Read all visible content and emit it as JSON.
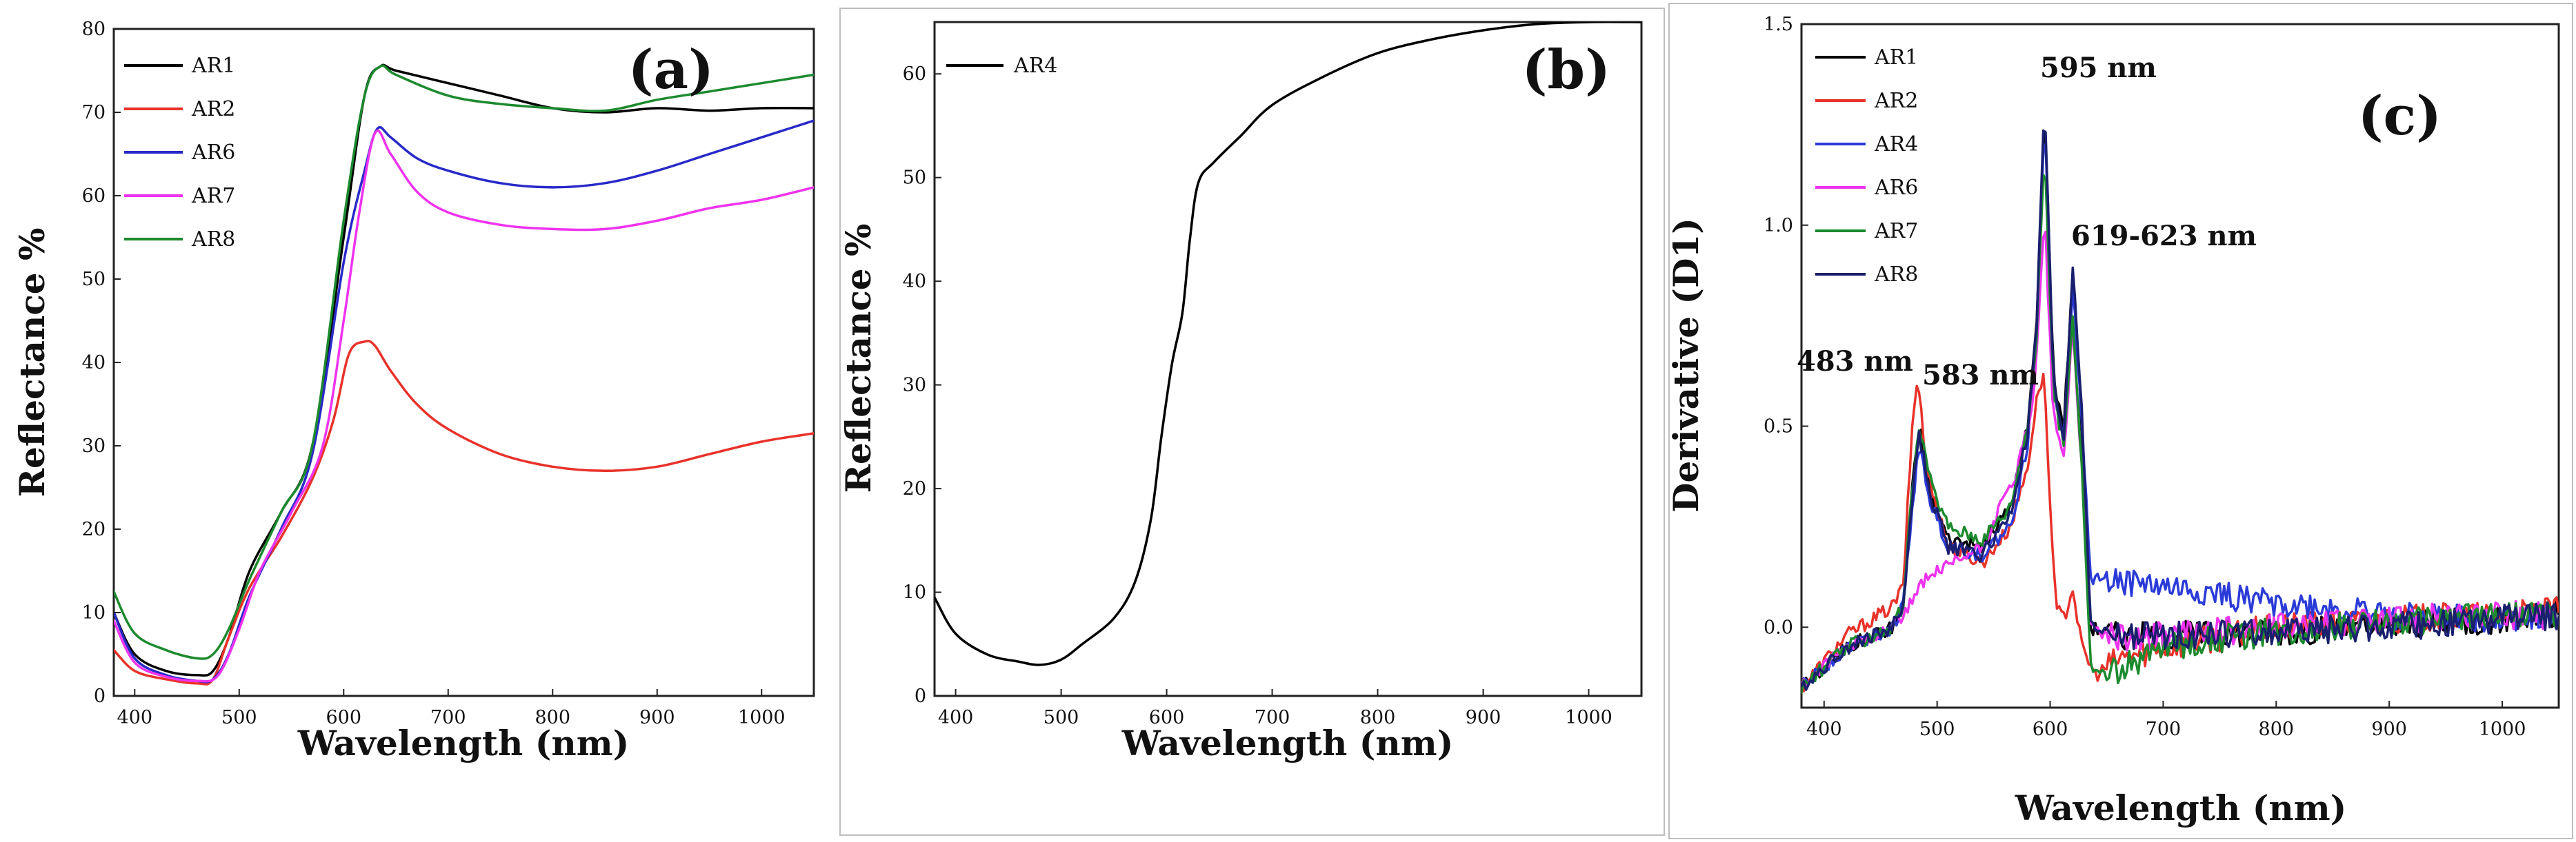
{
  "chart_data": [
    {
      "id": "a",
      "type": "line",
      "panel_label": "(a)",
      "xlabel": "Wavelength (nm)",
      "ylabel": "Reflectance %",
      "xlim": [
        380,
        1050
      ],
      "ylim": [
        0,
        80
      ],
      "xticks": [
        400,
        500,
        600,
        700,
        800,
        900,
        1000
      ],
      "yticks": [
        0,
        10,
        20,
        30,
        40,
        50,
        60,
        70,
        80
      ],
      "legend_position": "top-left",
      "series": [
        {
          "name": "AR1",
          "color": "#000000",
          "x": [
            380,
            400,
            430,
            460,
            475,
            490,
            510,
            540,
            570,
            600,
            620,
            635,
            650,
            700,
            750,
            800,
            850,
            900,
            950,
            1000,
            1050
          ],
          "y": [
            10,
            5,
            3,
            2.5,
            3,
            7,
            15,
            22,
            30,
            55,
            72,
            75.5,
            75,
            73.5,
            72,
            70.5,
            70,
            70.5,
            70.2,
            70.5,
            70.5
          ]
        },
        {
          "name": "AR2",
          "color": "#e8322a",
          "x": [
            380,
            400,
            430,
            460,
            475,
            490,
            510,
            540,
            570,
            590,
            605,
            620,
            630,
            645,
            670,
            700,
            750,
            800,
            850,
            900,
            950,
            1000,
            1050
          ],
          "y": [
            5.5,
            3,
            2,
            1.5,
            2,
            7,
            13,
            19,
            26,
            33,
            41,
            42.5,
            42,
            39,
            35,
            32,
            29,
            27.5,
            27,
            27.5,
            29,
            30.5,
            31.5
          ]
        },
        {
          "name": "AR6",
          "color": "#2929c8",
          "x": [
            380,
            400,
            430,
            460,
            475,
            490,
            510,
            540,
            570,
            600,
            620,
            632,
            645,
            670,
            700,
            750,
            800,
            850,
            900,
            950,
            1000,
            1050
          ],
          "y": [
            10,
            4.5,
            2.5,
            1.8,
            2,
            5,
            12,
            20,
            29,
            52,
            63,
            68,
            67,
            64.5,
            63,
            61.5,
            61,
            61.5,
            63,
            65,
            67,
            69
          ]
        },
        {
          "name": "AR7",
          "color": "#ee33ee",
          "x": [
            380,
            400,
            430,
            460,
            480,
            500,
            520,
            550,
            580,
            600,
            615,
            630,
            645,
            670,
            700,
            750,
            800,
            850,
            900,
            950,
            1000,
            1050
          ],
          "y": [
            9,
            4,
            2.3,
            1.8,
            2.5,
            8,
            15,
            22,
            30,
            45,
            58,
            67.5,
            65,
            60.5,
            58,
            56.5,
            56,
            56,
            57,
            58.5,
            59.5,
            61
          ]
        },
        {
          "name": "AR8",
          "color": "#1c8a2e",
          "x": [
            380,
            400,
            430,
            460,
            475,
            490,
            510,
            540,
            570,
            600,
            620,
            635,
            650,
            700,
            750,
            800,
            850,
            900,
            950,
            1000,
            1050
          ],
          "y": [
            12.5,
            7.5,
            5.5,
            4.5,
            5,
            8,
            14,
            22,
            30,
            57,
            72,
            75.5,
            74.5,
            72,
            71,
            70.5,
            70.2,
            71.5,
            72.5,
            73.5,
            74.5
          ]
        }
      ]
    },
    {
      "id": "b",
      "type": "line",
      "panel_label": "(b)",
      "xlabel": "Wavelength (nm)",
      "ylabel": "Reflectance %",
      "xlim": [
        380,
        1050
      ],
      "ylim": [
        0,
        65
      ],
      "xticks": [
        400,
        500,
        600,
        700,
        800,
        900,
        1000
      ],
      "yticks": [
        0,
        10,
        20,
        30,
        40,
        50,
        60
      ],
      "legend_position": "top-left",
      "series": [
        {
          "name": "AR4",
          "color": "#000000",
          "x": [
            380,
            400,
            430,
            460,
            480,
            500,
            520,
            550,
            570,
            585,
            595,
            605,
            615,
            622,
            630,
            645,
            670,
            700,
            750,
            800,
            850,
            900,
            950,
            1000,
            1050
          ],
          "y": [
            9.5,
            6,
            4,
            3.3,
            3,
            3.5,
            5,
            7.5,
            11,
            17,
            25,
            32,
            37,
            44,
            49.5,
            51.5,
            54,
            57,
            59.8,
            62,
            63.3,
            64.2,
            64.8,
            65,
            65
          ]
        }
      ]
    },
    {
      "id": "c",
      "type": "line",
      "panel_label": "(c)",
      "xlabel": "Wavelength (nm)",
      "ylabel": "Derivative (D1)",
      "xlim": [
        380,
        1050
      ],
      "ylim": [
        -0.2,
        1.5
      ],
      "xticks": [
        400,
        500,
        600,
        700,
        800,
        900,
        1000
      ],
      "yticks": [
        0.0,
        0.5,
        1.0,
        1.5
      ],
      "ytick_labels": [
        "0.0",
        "0.5",
        "1.0",
        "1.5"
      ],
      "legend_position": "top-left",
      "annotations": [
        "483 nm",
        "583 nm",
        "595 nm",
        "619-623 nm"
      ],
      "series": [
        {
          "name": "AR1",
          "color": "#000000",
          "x": [
            380,
            420,
            460,
            470,
            478,
            485,
            495,
            510,
            540,
            565,
            580,
            588,
            595,
            603,
            612,
            620,
            628,
            635,
            660,
            700,
            800,
            900,
            1000,
            1050
          ],
          "y": [
            -0.15,
            -0.05,
            0.0,
            0.05,
            0.35,
            0.5,
            0.32,
            0.22,
            0.2,
            0.3,
            0.5,
            0.75,
            1.3,
            0.62,
            0.5,
            0.88,
            0.5,
            0.0,
            -0.02,
            -0.02,
            -0.01,
            0.0,
            0.02,
            0.03
          ]
        },
        {
          "name": "AR2",
          "color": "#e8322a",
          "x": [
            380,
            420,
            460,
            470,
            478,
            483,
            490,
            510,
            540,
            565,
            580,
            590,
            595,
            600,
            605,
            612,
            620,
            628,
            640,
            660,
            700,
            800,
            900,
            1000,
            1050
          ],
          "y": [
            -0.15,
            -0.02,
            0.05,
            0.1,
            0.5,
            0.63,
            0.4,
            0.2,
            0.16,
            0.25,
            0.4,
            0.6,
            0.62,
            0.3,
            0.05,
            0.02,
            0.1,
            -0.05,
            -0.12,
            -0.08,
            -0.05,
            0.0,
            0.02,
            0.03,
            0.04
          ]
        },
        {
          "name": "AR4",
          "color": "#2b3bd8",
          "x": [
            380,
            420,
            460,
            470,
            478,
            484,
            495,
            510,
            540,
            565,
            580,
            588,
            595,
            603,
            612,
            620,
            628,
            636,
            650,
            700,
            750,
            800,
            900,
            1000,
            1050
          ],
          "y": [
            -0.15,
            -0.05,
            0.0,
            0.05,
            0.3,
            0.45,
            0.3,
            0.2,
            0.18,
            0.25,
            0.45,
            0.72,
            1.28,
            0.6,
            0.48,
            0.85,
            0.5,
            0.12,
            0.12,
            0.1,
            0.08,
            0.06,
            0.03,
            0.02,
            0.03
          ]
        },
        {
          "name": "AR6",
          "color": "#ee33ee",
          "x": [
            380,
            420,
            460,
            475,
            490,
            510,
            540,
            570,
            585,
            595,
            603,
            612,
            620,
            628,
            636,
            660,
            700,
            800,
            900,
            1000,
            1050
          ],
          "y": [
            -0.15,
            -0.05,
            0.0,
            0.05,
            0.12,
            0.15,
            0.2,
            0.38,
            0.55,
            1.03,
            0.52,
            0.42,
            0.75,
            0.4,
            0.0,
            -0.03,
            -0.02,
            0.0,
            0.02,
            0.03,
            0.03
          ]
        },
        {
          "name": "AR7",
          "color": "#1c8a2e",
          "x": [
            380,
            420,
            460,
            470,
            478,
            485,
            495,
            510,
            540,
            565,
            580,
            588,
            595,
            603,
            612,
            620,
            628,
            636,
            650,
            700,
            800,
            900,
            1000,
            1050
          ],
          "y": [
            -0.15,
            -0.05,
            0.0,
            0.05,
            0.35,
            0.5,
            0.35,
            0.25,
            0.22,
            0.3,
            0.5,
            0.72,
            1.2,
            0.58,
            0.45,
            0.78,
            0.4,
            -0.1,
            -0.12,
            -0.05,
            -0.01,
            0.01,
            0.03,
            0.03
          ]
        },
        {
          "name": "AR8",
          "color": "#1a1f6e",
          "x": [
            380,
            420,
            460,
            470,
            478,
            484,
            495,
            510,
            540,
            565,
            580,
            588,
            595,
            603,
            612,
            620,
            628,
            636,
            660,
            700,
            800,
            900,
            1000,
            1050
          ],
          "y": [
            -0.15,
            -0.05,
            0.0,
            0.05,
            0.32,
            0.48,
            0.32,
            0.2,
            0.18,
            0.28,
            0.48,
            0.74,
            1.32,
            0.6,
            0.47,
            0.9,
            0.55,
            0.0,
            -0.02,
            -0.02,
            -0.01,
            0.0,
            0.02,
            0.03
          ]
        }
      ]
    }
  ]
}
